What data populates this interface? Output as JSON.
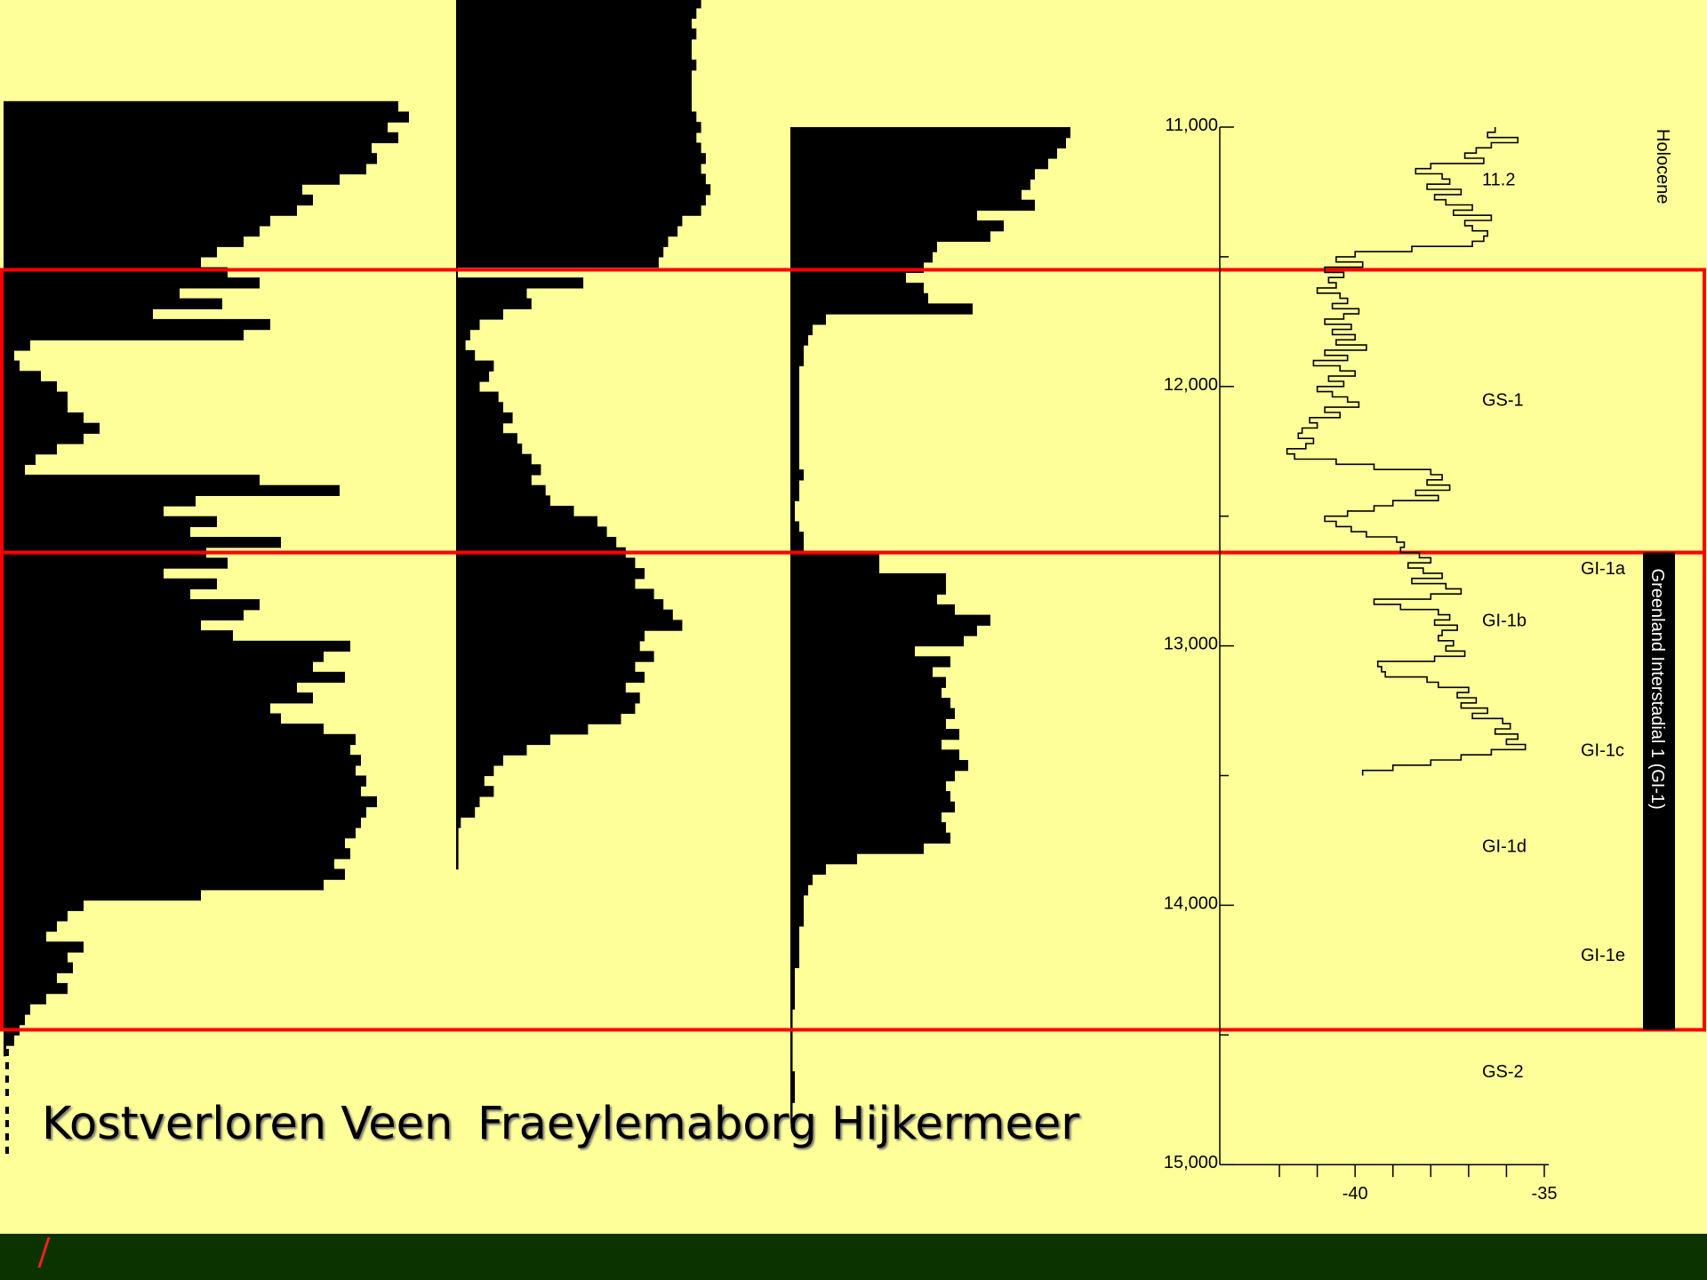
{
  "chart_data": {
    "type": "area",
    "title": "",
    "y_axis": {
      "label": "",
      "range": [
        10400,
        15000
      ],
      "ticks": [
        11000,
        12000,
        13000,
        14000,
        15000
      ],
      "tick_labels": [
        "11,000",
        "12,000",
        "13,000",
        "14,000",
        "15,000"
      ],
      "minor_ticks": [
        11500,
        12500,
        13500,
        14500
      ]
    },
    "pollen_sites": [
      {
        "name": "Kostverloren Veen",
        "label": "Kostverloren Veen",
        "depth_start": 10900,
        "step": 40,
        "values": [
          74,
          76,
          72,
          74,
          69,
          70,
          68,
          63,
          56,
          58,
          55,
          50,
          48,
          45,
          40,
          37,
          42,
          48,
          33,
          41,
          28,
          50,
          45,
          5,
          2,
          3,
          7,
          10,
          12,
          12,
          15,
          18,
          15,
          10,
          6,
          4,
          48,
          63,
          36,
          30,
          40,
          35,
          52,
          38,
          42,
          30,
          40,
          35,
          48,
          45,
          37,
          43,
          65,
          60,
          58,
          64,
          55,
          58,
          50,
          52,
          60,
          66,
          65,
          67,
          66,
          68,
          67,
          70,
          68,
          67,
          66,
          64,
          65,
          62,
          64,
          60,
          37,
          15,
          12,
          10,
          8,
          15,
          12,
          13,
          10,
          12,
          8,
          5,
          4,
          3,
          2,
          0.5
        ]
      },
      {
        "name": "Fraeylemaborg",
        "label": "Fraeylemaborg",
        "depth_start": 10500,
        "step": 40,
        "values": [
          52,
          51,
          50,
          51,
          50,
          50,
          51,
          50,
          50,
          50,
          50,
          51,
          52,
          51,
          52,
          53,
          52,
          53,
          54,
          53,
          52,
          48,
          47,
          45,
          44,
          43,
          0,
          27,
          15,
          16,
          10,
          5,
          3,
          2,
          4,
          8,
          7,
          5,
          9,
          10,
          12,
          10,
          13,
          14,
          16,
          18,
          16,
          19,
          20,
          25,
          30,
          32,
          34,
          36,
          38,
          40,
          38,
          42,
          44,
          46,
          48,
          40,
          39,
          42,
          38,
          40,
          36,
          39,
          38,
          35,
          28,
          20,
          15,
          10,
          8,
          6,
          8,
          5,
          4,
          1,
          0.5,
          0.5,
          0.5,
          0.5
        ]
      },
      {
        "name": "Hijkermeer",
        "label": "Hijkermeer",
        "depth_start": 11000,
        "step": 40,
        "values": [
          63,
          62,
          60,
          58,
          55,
          54,
          52,
          55,
          42,
          48,
          45,
          33,
          32,
          30,
          26,
          30,
          31,
          41,
          8,
          5,
          4,
          3,
          3,
          2,
          2,
          2,
          2,
          2,
          2,
          2,
          2,
          2,
          2,
          3,
          2,
          2,
          1,
          1,
          2,
          3,
          3,
          20,
          20,
          35,
          35,
          33,
          37,
          45,
          42,
          39,
          28,
          36,
          32,
          35,
          34,
          36,
          37,
          35,
          38,
          34,
          38,
          40,
          37,
          35,
          36,
          37,
          34,
          35,
          36,
          30,
          15,
          8,
          5,
          4,
          3,
          3,
          3,
          2,
          2,
          2,
          2,
          1,
          1,
          1,
          1,
          0.5,
          0.5,
          0.5,
          0.5,
          0.5,
          0.5,
          1,
          1,
          1,
          0.5,
          0.5
        ]
      }
    ],
    "isotope_series": {
      "name": "",
      "x_axis": {
        "range": [
          -42.8,
          -35
        ],
        "ticks": [
          -42,
          -41,
          -40,
          -39,
          -38,
          -37,
          -36,
          -35
        ],
        "tick_labels": [
          "",
          "",
          "-40",
          "",
          "",
          "",
          "",
          "-35"
        ]
      },
      "y_start": 11000,
      "y_step": 20,
      "values": [
        -36.3,
        -36.5,
        -35.7,
        -36.4,
        -36.8,
        -37.1,
        -36.6,
        -38.0,
        -38.4,
        -37.7,
        -37.5,
        -38.1,
        -37.2,
        -37.9,
        -37.6,
        -36.9,
        -37.4,
        -36.4,
        -37.1,
        -36.9,
        -36.5,
        -36.6,
        -36.9,
        -38.5,
        -40.0,
        -40.5,
        -39.8,
        -40.8,
        -40.3,
        -40.7,
        -40.5,
        -41.0,
        -40.4,
        -40.2,
        -40.6,
        -39.9,
        -40.3,
        -40.8,
        -40.1,
        -40.6,
        -40.0,
        -40.5,
        -39.7,
        -40.8,
        -40.2,
        -41.1,
        -40.4,
        -40.0,
        -40.7,
        -40.3,
        -41.0,
        -40.6,
        -40.2,
        -39.9,
        -40.8,
        -40.4,
        -41.2,
        -41.0,
        -41.4,
        -41.5,
        -41.1,
        -41.3,
        -41.8,
        -41.6,
        -40.5,
        -39.5,
        -38.0,
        -37.7,
        -38.1,
        -37.5,
        -38.4,
        -37.8,
        -39.0,
        -39.5,
        -40.2,
        -40.8,
        -40.5,
        -40.1,
        -39.7,
        -38.9,
        -38.7,
        -38.8,
        -38.3,
        -38.0,
        -38.6,
        -38.2,
        -37.7,
        -38.5,
        -37.6,
        -37.2,
        -38.0,
        -39.5,
        -38.8,
        -37.8,
        -37.5,
        -37.9,
        -37.3,
        -37.7,
        -37.8,
        -37.4,
        -37.6,
        -37.1,
        -37.9,
        -39.4,
        -39.3,
        -39.2,
        -38.1,
        -37.8,
        -37.0,
        -37.3,
        -36.8,
        -37.2,
        -36.5,
        -36.9,
        -36.1,
        -35.9,
        -36.3,
        -35.7,
        -36.0,
        -35.5,
        -36.4,
        -37.2,
        -38.0,
        -39.0,
        -39.8
      ]
    },
    "annotations": {
      "epochs": [
        "11.2",
        "GS-1",
        "GI-1a",
        "GI-1b",
        "GI-1c",
        "GI-1d",
        "GI-1e",
        "GS-2"
      ],
      "holocene": "Holocene",
      "interstadial": "Greenland Interstadial 1 (GI-1)"
    },
    "highlight_boxes": [
      [
        11550,
        12640
      ],
      [
        12640,
        14480
      ]
    ],
    "colors": {
      "background": "#ffff99",
      "bars": "#000000",
      "highlight": "#ff0000",
      "footer": "#0a3300"
    }
  }
}
